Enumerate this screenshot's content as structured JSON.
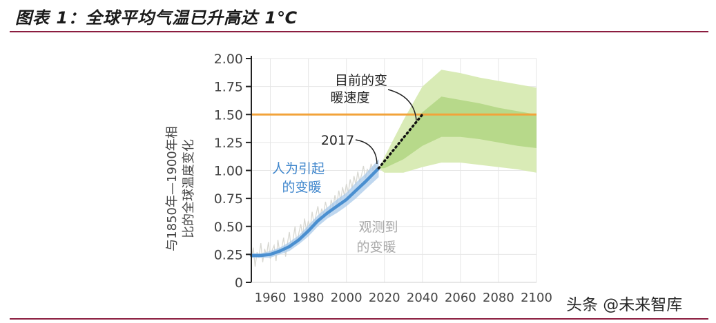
{
  "figure": {
    "title": "图表 1：全球平均气温已升高达 1℃",
    "watermark": "头条 @未来智库"
  },
  "chart_data": {
    "type": "line",
    "title": "",
    "xlabel": "",
    "ylabel_lines": [
      "与1850年—1900年相",
      "比的全球温度变化"
    ],
    "xlim": [
      1950,
      2100
    ],
    "ylim": [
      0,
      2.0
    ],
    "x_ticks": [
      "1960",
      "1980",
      "2000",
      "2020",
      "2040",
      "2060",
      "2080",
      "2100"
    ],
    "y_ticks": [
      "0",
      "0.25",
      "0.50",
      "0.75",
      "1.00",
      "1.25",
      "1.50",
      "1.75",
      "2.00"
    ],
    "grid": true,
    "threshold": {
      "value": 1.5,
      "color": "#f2a33a"
    },
    "series": [
      {
        "key": "anthropogenic",
        "color": "#4a8fd0",
        "x": [
          1950,
          1955,
          1960,
          1965,
          1970,
          1975,
          1980,
          1985,
          1990,
          1995,
          2000,
          2005,
          2010,
          2017
        ],
        "values": [
          0.24,
          0.24,
          0.25,
          0.28,
          0.32,
          0.38,
          0.46,
          0.55,
          0.62,
          0.68,
          0.74,
          0.82,
          0.9,
          1.02
        ],
        "band_width": [
          0.02,
          0.02,
          0.03,
          0.03,
          0.04,
          0.04,
          0.05,
          0.05,
          0.05,
          0.06,
          0.06,
          0.07,
          0.07,
          0.08
        ]
      },
      {
        "key": "observed",
        "color": "#d8d8d2",
        "x_start": 1950,
        "x_end": 2017,
        "values": [
          0.2,
          0.31,
          0.14,
          0.27,
          0.22,
          0.35,
          0.18,
          0.3,
          0.24,
          0.36,
          0.21,
          0.29,
          0.33,
          0.19,
          0.38,
          0.26,
          0.31,
          0.4,
          0.23,
          0.35,
          0.45,
          0.3,
          0.39,
          0.5,
          0.34,
          0.44,
          0.52,
          0.41,
          0.57,
          0.46,
          0.55,
          0.49,
          0.63,
          0.51,
          0.6,
          0.68,
          0.56,
          0.66,
          0.61,
          0.72,
          0.64,
          0.59,
          0.74,
          0.67,
          0.78,
          0.7,
          0.82,
          0.73,
          0.85,
          0.77,
          0.88,
          0.8,
          0.92,
          0.84,
          0.95,
          0.87,
          0.99,
          0.9,
          0.96,
          1.04,
          0.93,
          1.01,
          0.98,
          1.06,
          1.0,
          1.05,
          0.99,
          1.03
        ]
      },
      {
        "key": "current_rate",
        "style": "dotted",
        "color": "#111111",
        "x": [
          2017,
          2040
        ],
        "values": [
          1.02,
          1.5
        ]
      },
      {
        "key": "projection",
        "outer_color": "#d9ebb6",
        "inner_color": "#b7d98a",
        "x": [
          2017,
          2020,
          2030,
          2040,
          2050,
          2060,
          2070,
          2080,
          2090,
          2100
        ],
        "outer_upper": [
          1.02,
          1.12,
          1.45,
          1.75,
          1.9,
          1.87,
          1.83,
          1.8,
          1.77,
          1.74
        ],
        "outer_lower": [
          1.02,
          0.98,
          0.98,
          1.03,
          1.07,
          1.07,
          1.05,
          1.03,
          1.01,
          0.98
        ],
        "inner_upper": [
          1.02,
          1.07,
          1.3,
          1.52,
          1.66,
          1.63,
          1.6,
          1.56,
          1.53,
          1.5
        ],
        "inner_lower": [
          1.02,
          1.02,
          1.1,
          1.22,
          1.3,
          1.3,
          1.28,
          1.25,
          1.22,
          1.2
        ]
      }
    ],
    "annotations": {
      "current_rate_lines": [
        "目前的变",
        "暖速度"
      ],
      "year_2017": "2017",
      "anthropogenic_lines": [
        "人为引起",
        "的变暖"
      ],
      "observed_lines": [
        "观测到",
        "的变暖"
      ]
    },
    "colors": {
      "axis": "#222222",
      "grid": "#e6e6e6",
      "tick_text": "#444444",
      "anthro_text": "#3f86cc",
      "observed_text": "#a8a8a8",
      "annot_text": "#222222"
    }
  }
}
